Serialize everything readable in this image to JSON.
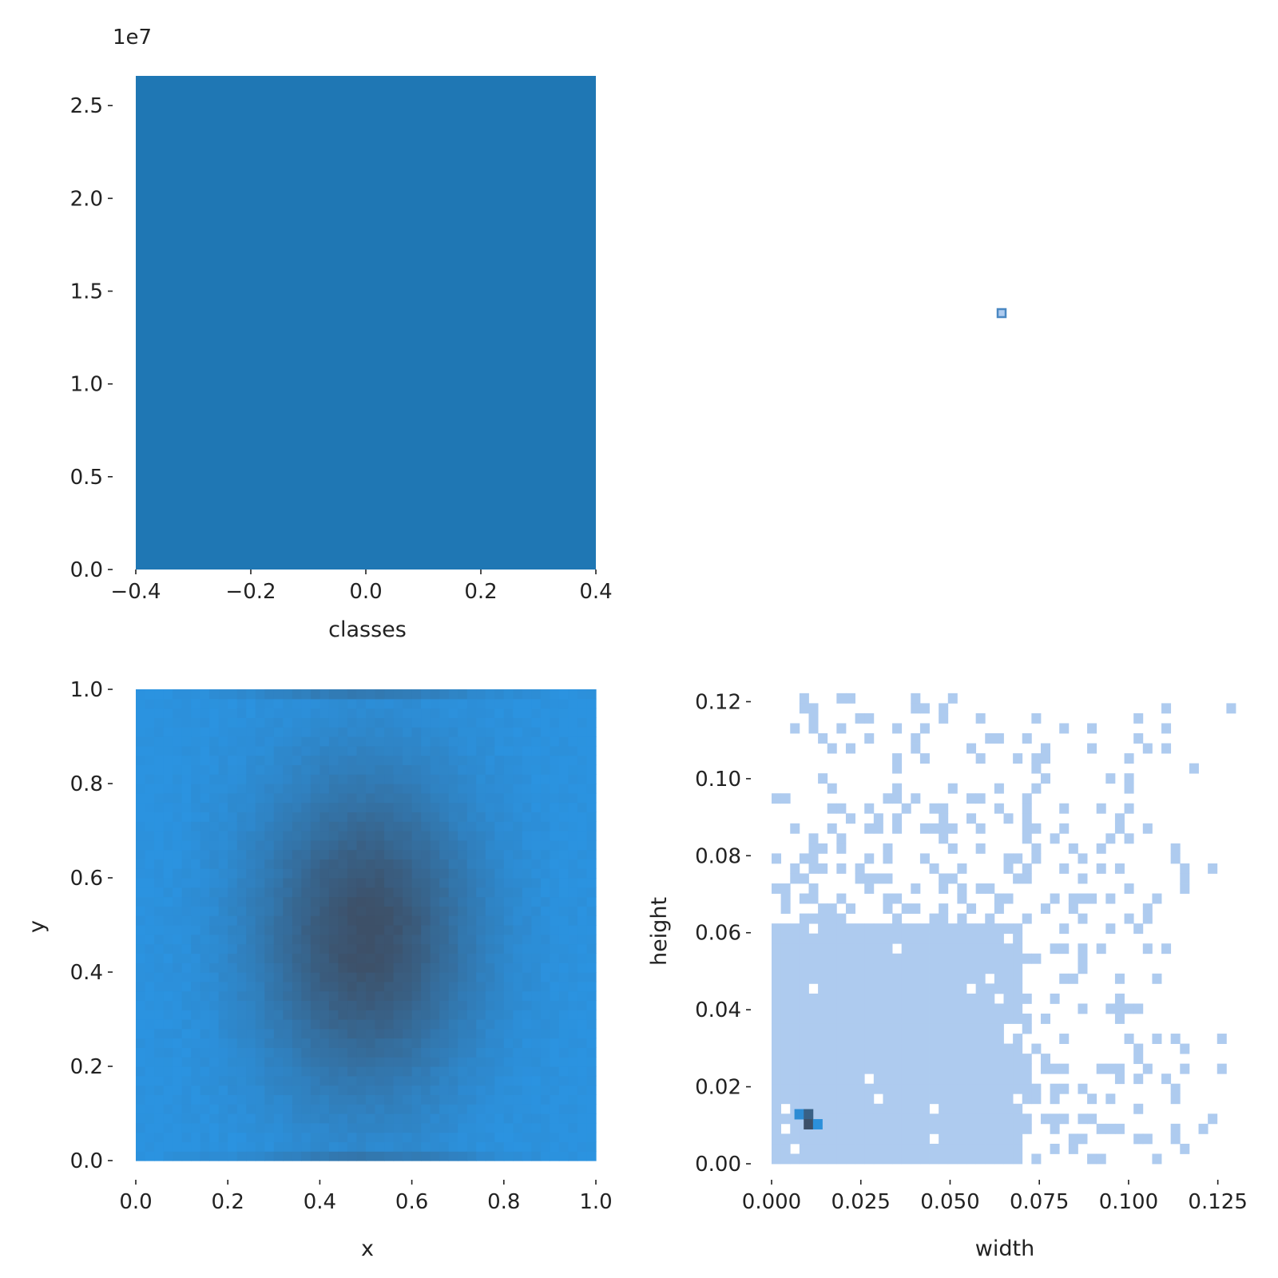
{
  "colors": {
    "bar": "#1f77b4",
    "hist_light": "#aecbef",
    "heat_high": "#3d5068",
    "heat_low": "#2b93e0",
    "square_edge": "#4a88c2"
  },
  "chart_data": [
    {
      "panel": "top-left",
      "type": "bar",
      "xlabel": "classes",
      "ylabel": "",
      "y_offset_text": "1e7",
      "xlim": [
        -0.4,
        0.4
      ],
      "ylim": [
        0,
        2.66
      ],
      "xticks": [
        -0.4,
        -0.2,
        0.0,
        0.2,
        0.4
      ],
      "xtick_labels": [
        "−0.4",
        "−0.2",
        "0.0",
        "0.2",
        "0.4"
      ],
      "yticks": [
        0.0,
        0.5,
        1.0,
        1.5,
        2.0,
        2.5
      ],
      "ytick_labels": [
        "0.0",
        "0.5",
        "1.0",
        "1.5",
        "2.0",
        "2.5"
      ],
      "bars": [
        {
          "x_start": -0.4,
          "x_end": 0.4,
          "value": 2.66
        }
      ]
    },
    {
      "panel": "top-right",
      "type": "scatter",
      "points": [
        {
          "x": 0.5,
          "y": 0.5
        }
      ],
      "grid": false
    },
    {
      "panel": "bottom-left",
      "type": "heatmap",
      "xlabel": "x",
      "ylabel": "y",
      "xlim": [
        0,
        1
      ],
      "ylim": [
        0,
        1
      ],
      "xticks": [
        0.0,
        0.2,
        0.4,
        0.6,
        0.8,
        1.0
      ],
      "xtick_labels": [
        "0.0",
        "0.2",
        "0.4",
        "0.6",
        "0.8",
        "1.0"
      ],
      "yticks": [
        0.0,
        0.2,
        0.4,
        0.6,
        0.8,
        1.0
      ],
      "ytick_labels": [
        "0.0",
        "0.2",
        "0.4",
        "0.6",
        "0.8",
        "1.0"
      ],
      "bins": 50,
      "density_peak": {
        "x": 0.5,
        "y": 0.48
      }
    },
    {
      "panel": "bottom-right",
      "type": "heatmap",
      "xlabel": "width",
      "ylabel": "height",
      "xlim": [
        0,
        0.13
      ],
      "ylim": [
        0,
        0.123
      ],
      "xticks": [
        0.0,
        0.025,
        0.05,
        0.075,
        0.1,
        0.125
      ],
      "xtick_labels": [
        "0.000",
        "0.025",
        "0.050",
        "0.075",
        "0.100",
        "0.125"
      ],
      "yticks": [
        0.0,
        0.02,
        0.04,
        0.06,
        0.08,
        0.1,
        0.12
      ],
      "ytick_labels": [
        "0.00",
        "0.02",
        "0.04",
        "0.06",
        "0.08",
        "0.10",
        "0.12"
      ],
      "dense_region": {
        "width": [
          0.0,
          0.07
        ],
        "height": [
          0.0,
          0.062
        ]
      },
      "peak": {
        "width": 0.009,
        "height": 0.009
      }
    }
  ]
}
